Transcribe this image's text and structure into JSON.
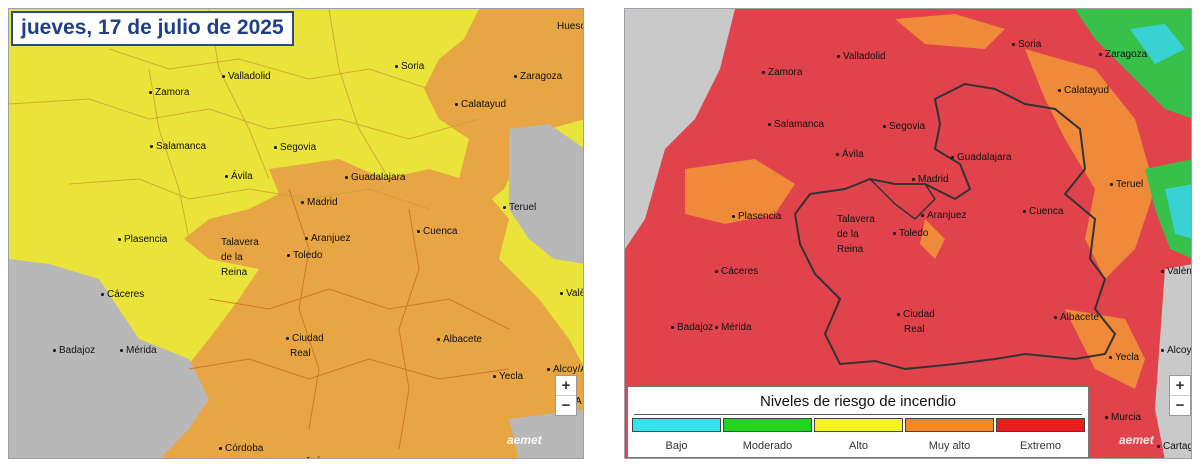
{
  "date_label": "jueves, 17 de julio de 2025",
  "left_map": {
    "cities": [
      {
        "name": "Zamora",
        "dot": true
      },
      {
        "name": "Valladolid",
        "dot": true
      },
      {
        "name": "Soria",
        "dot": true
      },
      {
        "name": "Zaragoza",
        "dot": true
      },
      {
        "name": "Huesc",
        "dot": false
      },
      {
        "name": "Calatayud",
        "dot": true
      },
      {
        "name": "Salamanca",
        "dot": true
      },
      {
        "name": "Segovia",
        "dot": true
      },
      {
        "name": "Ávila",
        "dot": true
      },
      {
        "name": "Guadalajara",
        "dot": true
      },
      {
        "name": "Madrid",
        "dot": true
      },
      {
        "name": "Teruel",
        "dot": true
      },
      {
        "name": "Plasencia",
        "dot": true
      },
      {
        "name": "Talavera",
        "dot": false
      },
      {
        "name": "de la",
        "dot": false
      },
      {
        "name": "Reina",
        "dot": false
      },
      {
        "name": "Aranjuez",
        "dot": true
      },
      {
        "name": "Toledo",
        "dot": true
      },
      {
        "name": "Cuenca",
        "dot": true
      },
      {
        "name": "Cáceres",
        "dot": true
      },
      {
        "name": "Valèn",
        "dot": true
      },
      {
        "name": "Badajoz",
        "dot": true
      },
      {
        "name": "Mérida",
        "dot": true
      },
      {
        "name": "Ciudad",
        "dot": true
      },
      {
        "name": "Real",
        "dot": false
      },
      {
        "name": "Albacete",
        "dot": true
      },
      {
        "name": "Alcoy/A",
        "dot": true
      },
      {
        "name": "Yecla",
        "dot": true
      },
      {
        "name": "Córdoba",
        "dot": true
      },
      {
        "name": "Jaén",
        "dot": true
      },
      {
        "name": "A",
        "dot": false
      }
    ],
    "zoom_in": "+",
    "zoom_out": "−",
    "logo": "aemet"
  },
  "right_map": {
    "cities": [
      {
        "name": "Soria",
        "dot": true
      },
      {
        "name": "Zaragoza",
        "dot": true
      },
      {
        "name": "Zamora",
        "dot": true
      },
      {
        "name": "Valladolid",
        "dot": true
      },
      {
        "name": "Calatayud",
        "dot": true
      },
      {
        "name": "Salamanca",
        "dot": true
      },
      {
        "name": "Segovia",
        "dot": true
      },
      {
        "name": "Ávila",
        "dot": true
      },
      {
        "name": "Guadalajara",
        "dot": true
      },
      {
        "name": "Madrid",
        "dot": true
      },
      {
        "name": "Teruel",
        "dot": true
      },
      {
        "name": "Plasencia",
        "dot": true
      },
      {
        "name": "Talavera",
        "dot": false
      },
      {
        "name": "de la",
        "dot": false
      },
      {
        "name": "Reina",
        "dot": false
      },
      {
        "name": "Aranjuez",
        "dot": true
      },
      {
        "name": "Toledo",
        "dot": true
      },
      {
        "name": "Cuenca",
        "dot": true
      },
      {
        "name": "Cáceres",
        "dot": true
      },
      {
        "name": "Valèn",
        "dot": true
      },
      {
        "name": "Badajoz",
        "dot": true
      },
      {
        "name": "Mérida",
        "dot": true
      },
      {
        "name": "Ciudad",
        "dot": true
      },
      {
        "name": "Real",
        "dot": false
      },
      {
        "name": "Albacete",
        "dot": true
      },
      {
        "name": "Alcoy/A",
        "dot": true
      },
      {
        "name": "Yecla",
        "dot": true
      },
      {
        "name": "Murcia",
        "dot": true
      },
      {
        "name": "Cartagena",
        "dot": true
      }
    ],
    "zoom_in": "+",
    "zoom_out": "−",
    "logo": "aemet"
  },
  "legend": {
    "title": "Niveles de riesgo de incendio",
    "levels": [
      {
        "label": "Bajo",
        "color": "#33e4ee"
      },
      {
        "label": "Moderado",
        "color": "#22d51f"
      },
      {
        "label": "Alto",
        "color": "#f6f421"
      },
      {
        "label": "Muy alto",
        "color": "#f28a1f"
      },
      {
        "label": "Extremo",
        "color": "#ee1d1d"
      }
    ]
  },
  "colors": {
    "yellow": "#e9e33a",
    "orange": "#e7a544",
    "grey": "#b8b8b8",
    "red": "#e0434b",
    "green": "#37c04a",
    "cyan": "#39d2d3",
    "border_blue": "#2b4c8c"
  }
}
